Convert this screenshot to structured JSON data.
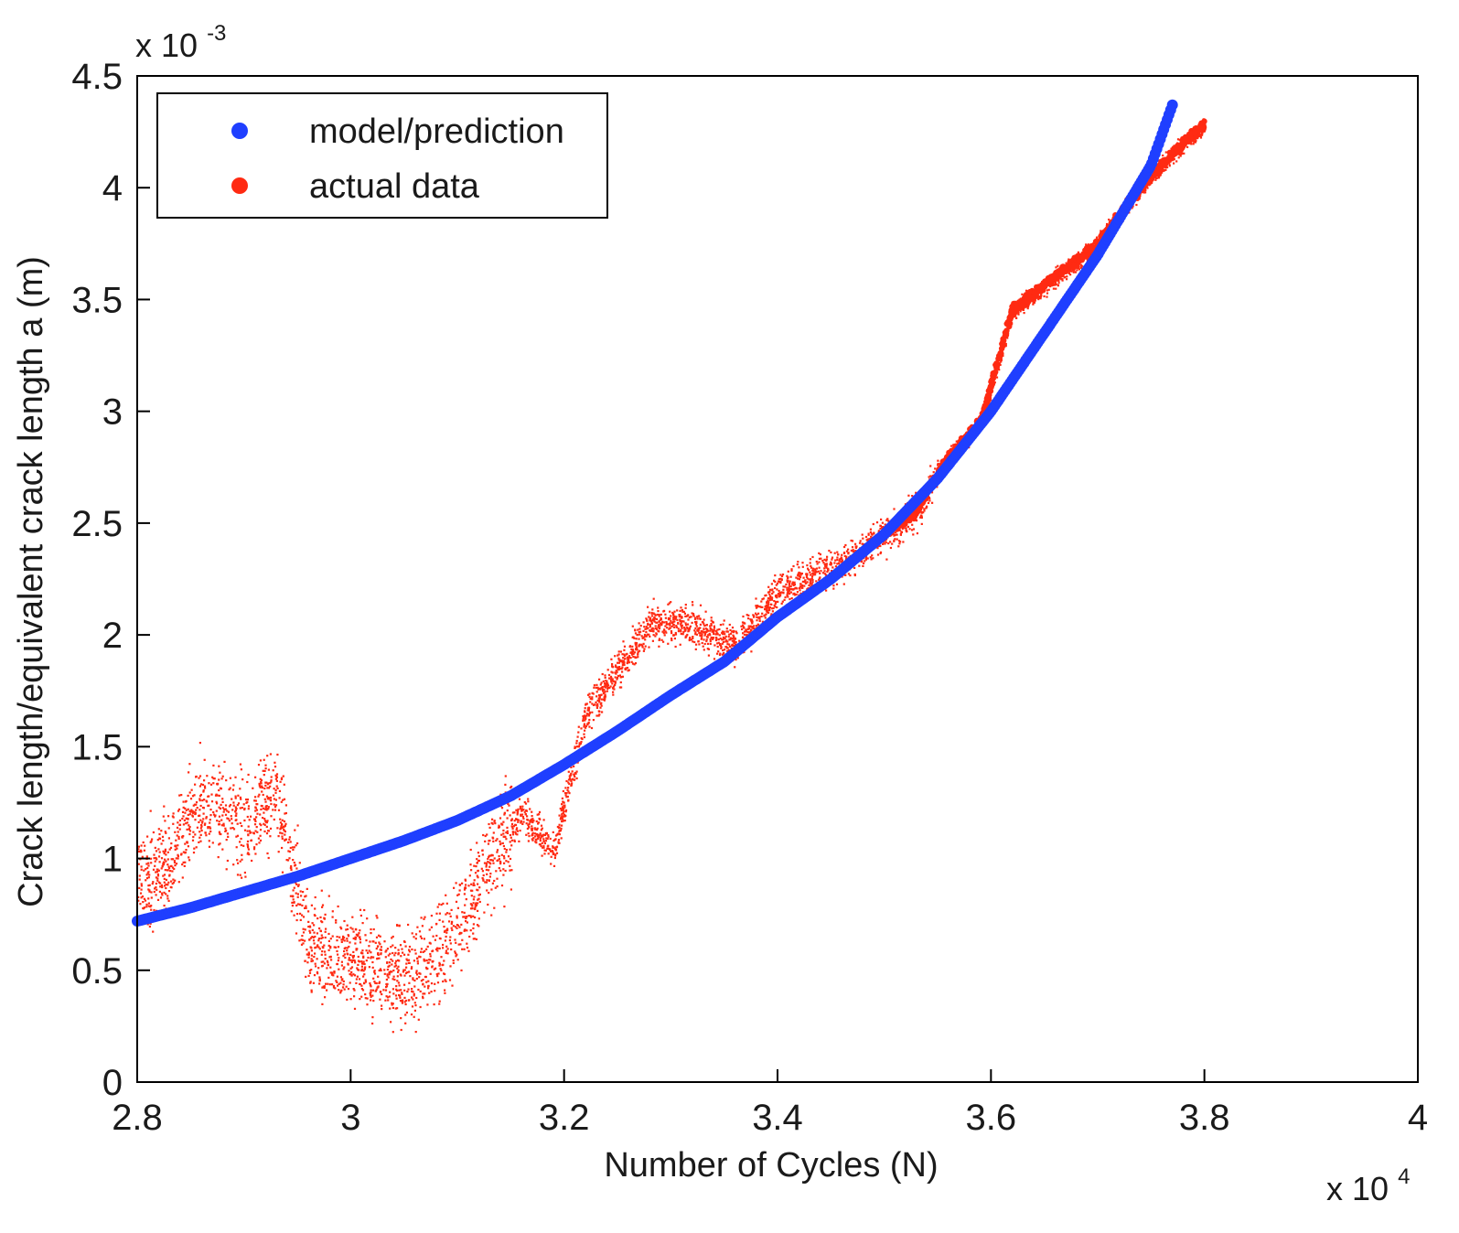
{
  "chart_data": {
    "type": "scatter",
    "title": "",
    "xlabel": "Number of Cycles (N)",
    "ylabel": "Crack length/equivalent crack length a (m)",
    "x_multiplier": {
      "base": "x 10",
      "exponent": "4"
    },
    "y_multiplier": {
      "base": "x 10",
      "exponent": "-3"
    },
    "xlim": [
      2.8,
      4.0
    ],
    "ylim": [
      0,
      4.5
    ],
    "xticks": [
      "2.8",
      "3",
      "3.2",
      "3.4",
      "3.6",
      "3.8",
      "4"
    ],
    "yticks": [
      "0",
      "0.5",
      "1",
      "1.5",
      "2",
      "2.5",
      "3",
      "3.5",
      "4",
      "4.5"
    ],
    "grid": false,
    "legend_position": "top-left",
    "series": [
      {
        "name": "model/prediction",
        "color": "#1f3fff",
        "marker": "filled-circle",
        "x": [
          2.8,
          2.85,
          2.9,
          2.95,
          3.0,
          3.05,
          3.1,
          3.15,
          3.2,
          3.25,
          3.3,
          3.35,
          3.4,
          3.45,
          3.5,
          3.55,
          3.6,
          3.65,
          3.7,
          3.75,
          3.77
        ],
        "y": [
          0.72,
          0.78,
          0.85,
          0.92,
          1.0,
          1.08,
          1.17,
          1.28,
          1.42,
          1.57,
          1.73,
          1.88,
          2.08,
          2.25,
          2.45,
          2.7,
          3.0,
          3.35,
          3.7,
          4.1,
          4.37
        ]
      },
      {
        "name": "actual data",
        "color": "#ff2a12",
        "marker": "dot",
        "x": [
          2.8,
          2.83,
          2.86,
          2.9,
          2.93,
          2.96,
          3.0,
          3.03,
          3.06,
          3.1,
          3.13,
          3.16,
          3.19,
          3.22,
          3.25,
          3.28,
          3.32,
          3.36,
          3.4,
          3.45,
          3.5,
          3.53,
          3.56,
          3.59,
          3.62,
          3.66,
          3.7,
          3.74,
          3.78,
          3.8
        ],
        "y": [
          0.9,
          1.0,
          1.25,
          1.15,
          1.3,
          0.6,
          0.55,
          0.5,
          0.45,
          0.7,
          1.0,
          1.2,
          1.05,
          1.65,
          1.85,
          2.05,
          2.05,
          1.95,
          2.2,
          2.3,
          2.45,
          2.55,
          2.8,
          2.95,
          3.45,
          3.6,
          3.75,
          4.0,
          4.2,
          4.28
        ]
      }
    ]
  }
}
